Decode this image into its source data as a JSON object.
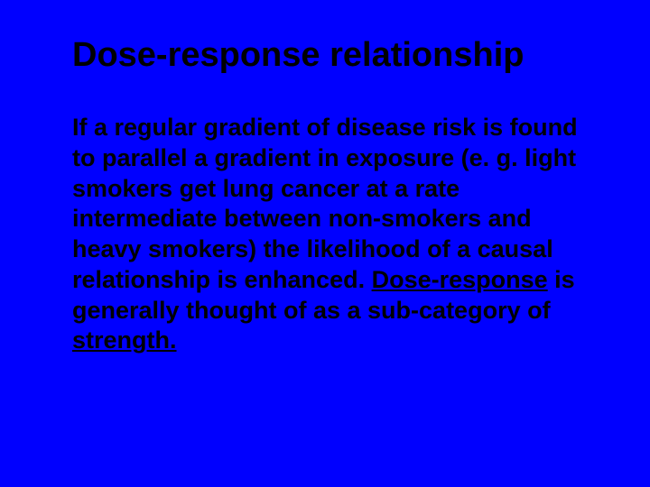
{
  "slide": {
    "title": "Dose-response relationship",
    "paragraph_part1": "If a regular gradient of disease risk is found to parallel a gradient in exposure (e. g. light smokers get lung cancer at a rate intermediate between non-smokers and heavy smokers) the likelihood of a causal relationship is enhanced.  ",
    "underlined1": "Dose-response",
    "paragraph_part2": " is generally thought of as a sub-category of ",
    "underlined2": "strength.",
    "background_color": "#0000ff",
    "text_color": "#000000",
    "title_fontsize": 38,
    "body_fontsize": 27,
    "font_weight": "bold"
  }
}
